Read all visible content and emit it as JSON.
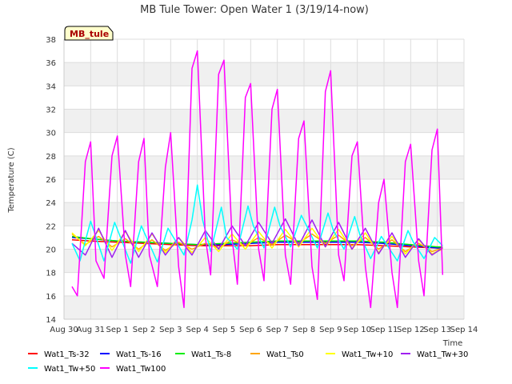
{
  "chart_data": {
    "type": "line",
    "title": "MB Tule Tower: Open Water 1 (3/19/14-now)",
    "xlabel": "Time",
    "ylabel": "Temperature (C)",
    "ylim": [
      14,
      38
    ],
    "xlim": [
      0,
      15
    ],
    "yticks": [
      14,
      16,
      18,
      20,
      22,
      24,
      26,
      28,
      30,
      32,
      34,
      36,
      38
    ],
    "xtick_labels": [
      "Aug 30",
      "Aug 31",
      "Sep 1",
      "Sep 2",
      "Sep 3",
      "Sep 4",
      "Sep 5",
      "Sep 6",
      "Sep 7",
      "Sep 8",
      "Sep 9",
      "Sep 10",
      "Sep 11",
      "Sep 12",
      "Sep 13",
      "Sep 14"
    ],
    "grid": true,
    "station_label": "MB_tule",
    "x_units": "days since Aug 30",
    "series": [
      {
        "name": "Wat1_Ts-32",
        "color": "#ff0000",
        "x": [
          0.3,
          1,
          2,
          3,
          4,
          5,
          6,
          7,
          8,
          9,
          10,
          11,
          12,
          13,
          14,
          14.2
        ],
        "y": [
          20.8,
          20.7,
          20.6,
          20.5,
          20.4,
          20.3,
          20.3,
          20.3,
          20.4,
          20.4,
          20.4,
          20.4,
          20.3,
          20.2,
          20.1,
          20.1
        ]
      },
      {
        "name": "Wat1_Ts-16",
        "color": "#0000ff",
        "x": [
          0.3,
          1,
          2,
          3,
          4,
          5,
          6,
          7,
          8,
          9,
          10,
          11,
          12,
          13,
          14,
          14.2
        ],
        "y": [
          21.0,
          20.9,
          20.7,
          20.6,
          20.5,
          20.4,
          20.4,
          20.5,
          20.6,
          20.6,
          20.6,
          20.6,
          20.5,
          20.3,
          20.1,
          20.1
        ]
      },
      {
        "name": "Wat1_Ts-8",
        "color": "#00ee00",
        "x": [
          0.3,
          1,
          2,
          3,
          4,
          5,
          6,
          7,
          8,
          9,
          10,
          11,
          12,
          13,
          14,
          14.2
        ],
        "y": [
          21.1,
          20.9,
          20.7,
          20.6,
          20.5,
          20.4,
          20.5,
          20.6,
          20.7,
          20.7,
          20.7,
          20.7,
          20.6,
          20.4,
          20.2,
          20.2
        ]
      },
      {
        "name": "Wat1_Ts0",
        "color": "#ffa500",
        "x": [
          0.3,
          0.8,
          1.3,
          1.8,
          2.3,
          2.8,
          3.3,
          3.8,
          4.3,
          4.8,
          5.3,
          5.8,
          6.3,
          6.8,
          7.3,
          7.8,
          8.3,
          8.8,
          9.3,
          9.8,
          10.3,
          10.8,
          11.3,
          11.8,
          12.3,
          12.8,
          13.3,
          13.8,
          14.2
        ],
        "y": [
          21.3,
          20.4,
          21.1,
          20.2,
          20.9,
          20.0,
          20.8,
          19.9,
          20.6,
          20.0,
          20.5,
          20.1,
          20.8,
          20.3,
          21.0,
          20.4,
          21.2,
          20.5,
          21.3,
          20.5,
          21.2,
          20.3,
          21.0,
          20.0,
          20.8,
          19.8,
          20.5,
          19.8,
          20.1
        ]
      },
      {
        "name": "Wat1_Tw+10",
        "color": "#ffff00",
        "x": [
          0.3,
          0.8,
          1.3,
          1.8,
          2.3,
          2.8,
          3.3,
          3.8,
          4.3,
          4.8,
          5.3,
          5.8,
          6.3,
          6.8,
          7.3,
          7.8,
          8.3,
          8.8,
          9.3,
          9.8,
          10.3,
          10.8,
          11.3,
          11.8,
          12.3,
          12.8,
          13.3,
          13.8,
          14.2
        ],
        "y": [
          21.4,
          20.3,
          21.6,
          19.9,
          21.5,
          19.8,
          21.3,
          19.7,
          21.0,
          19.7,
          21.0,
          19.8,
          21.3,
          20.0,
          21.5,
          20.1,
          21.7,
          20.2,
          21.8,
          20.2,
          21.7,
          20.0,
          21.4,
          19.7,
          21.1,
          19.6,
          20.8,
          19.6,
          20.0
        ]
      },
      {
        "name": "Wat1_Tw+30",
        "color": "#a020f0",
        "x": [
          0.3,
          0.8,
          1.3,
          1.8,
          2.3,
          2.8,
          3.3,
          3.8,
          4.3,
          4.8,
          5.3,
          5.8,
          6.3,
          6.8,
          7.3,
          7.8,
          8.3,
          8.8,
          9.3,
          9.8,
          10.3,
          10.8,
          11.3,
          11.8,
          12.3,
          12.8,
          13.3,
          13.8,
          14.2
        ],
        "y": [
          20.5,
          19.5,
          21.8,
          19.3,
          21.6,
          19.3,
          21.4,
          19.5,
          21.0,
          19.5,
          21.6,
          20.0,
          22.0,
          20.3,
          22.3,
          20.5,
          22.6,
          20.3,
          22.5,
          20.2,
          22.3,
          20.0,
          21.8,
          19.6,
          21.4,
          19.3,
          20.9,
          19.5,
          20.1
        ]
      },
      {
        "name": "Wat1_Tw+50",
        "color": "#00ffff",
        "x": [
          0.3,
          0.6,
          1,
          1.5,
          1.9,
          2.5,
          2.9,
          3.5,
          3.9,
          4.5,
          4.8,
          5,
          5.2,
          5.5,
          5.9,
          6.1,
          6.5,
          6.9,
          7.1,
          7.5,
          7.9,
          8.1,
          8.5,
          8.9,
          9.1,
          9.5,
          9.9,
          10.1,
          10.5,
          10.9,
          11.1,
          11.5,
          11.9,
          12.1,
          12.5,
          12.9,
          13.1,
          13.5,
          13.9,
          14.2
        ],
        "y": [
          20.5,
          19.0,
          22.4,
          19.0,
          22.3,
          18.8,
          22.0,
          18.9,
          21.8,
          19.5,
          22.5,
          25.5,
          22.5,
          19.8,
          23.6,
          21.0,
          20.0,
          23.7,
          22.0,
          20.1,
          23.6,
          22.0,
          20.2,
          22.9,
          22.0,
          20.1,
          23.1,
          21.6,
          20.0,
          22.8,
          21.2,
          19.2,
          21.1,
          20.4,
          19.0,
          21.6,
          20.6,
          19.2,
          21.0,
          20.3
        ]
      },
      {
        "name": "Wat1_Tw100",
        "color": "#ff00ff",
        "x": [
          0.3,
          0.5,
          0.8,
          1.0,
          1.2,
          1.5,
          1.8,
          2.0,
          2.3,
          2.5,
          2.8,
          3.0,
          3.2,
          3.5,
          3.8,
          4.0,
          4.3,
          4.5,
          4.8,
          5.0,
          5.3,
          5.5,
          5.8,
          6.0,
          6.3,
          6.5,
          6.8,
          7.0,
          7.3,
          7.5,
          7.8,
          8.0,
          8.3,
          8.5,
          8.8,
          9.0,
          9.3,
          9.5,
          9.8,
          10.0,
          10.3,
          10.5,
          10.8,
          11.0,
          11.3,
          11.5,
          11.8,
          12.0,
          12.3,
          12.5,
          12.8,
          13.0,
          13.3,
          13.5,
          13.8,
          14.0,
          14.2
        ],
        "y": [
          16.8,
          16.0,
          27.5,
          29.2,
          19.0,
          17.5,
          28.0,
          29.7,
          19.5,
          16.8,
          27.5,
          29.5,
          19.5,
          16.8,
          27.0,
          30.0,
          18.5,
          15.0,
          35.5,
          37.0,
          21.0,
          17.8,
          35.0,
          36.2,
          21.0,
          17.0,
          33.0,
          34.2,
          20.0,
          17.3,
          32.0,
          33.7,
          19.5,
          17.0,
          29.5,
          31.0,
          18.5,
          15.7,
          33.5,
          35.3,
          19.5,
          17.3,
          28.0,
          29.2,
          18.5,
          15.0,
          24.0,
          26.0,
          18.0,
          15.0,
          27.5,
          29.0,
          19.0,
          16.0,
          28.5,
          30.3,
          17.8
        ]
      }
    ]
  }
}
